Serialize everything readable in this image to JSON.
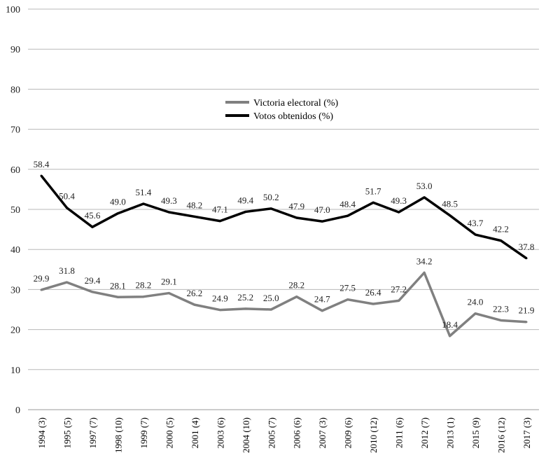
{
  "chart_data": {
    "type": "line",
    "title": "",
    "xlabel": "",
    "ylabel": "",
    "ylim": [
      0,
      100
    ],
    "yticks": [
      0,
      10,
      20,
      30,
      40,
      50,
      60,
      70,
      80,
      90,
      100
    ],
    "grid": true,
    "legend_position": "top-center",
    "categories": [
      "1994 (3)",
      "1995 (5)",
      "1997 (7)",
      "1998 (10)",
      "1999 (7)",
      "2000 (5)",
      "2001 (4)",
      "2003 (6)",
      "2004 (10)",
      "2005 (7)",
      "2006 (6)",
      "2007 (3)",
      "2009 (6)",
      "2010 (12)",
      "2011 (6)",
      "2012 (7)",
      "2013 (1)",
      "2015 (9)",
      "2016 (12)",
      "2017 (3)"
    ],
    "series": [
      {
        "name": "Victoria electoral (%)",
        "color": "#808080",
        "values": [
          29.9,
          31.8,
          29.4,
          28.1,
          28.2,
          29.1,
          26.2,
          24.9,
          25.2,
          25.0,
          28.2,
          24.7,
          27.5,
          26.4,
          27.2,
          34.2,
          18.4,
          24.0,
          22.3,
          21.9
        ]
      },
      {
        "name": "Votos obtenidos (%)",
        "color": "#000000",
        "values": [
          58.4,
          50.4,
          45.6,
          49.0,
          51.4,
          49.3,
          48.2,
          47.1,
          49.4,
          50.2,
          47.9,
          47.0,
          48.4,
          51.7,
          49.3,
          53.0,
          48.5,
          43.7,
          42.2,
          37.8
        ]
      }
    ]
  }
}
